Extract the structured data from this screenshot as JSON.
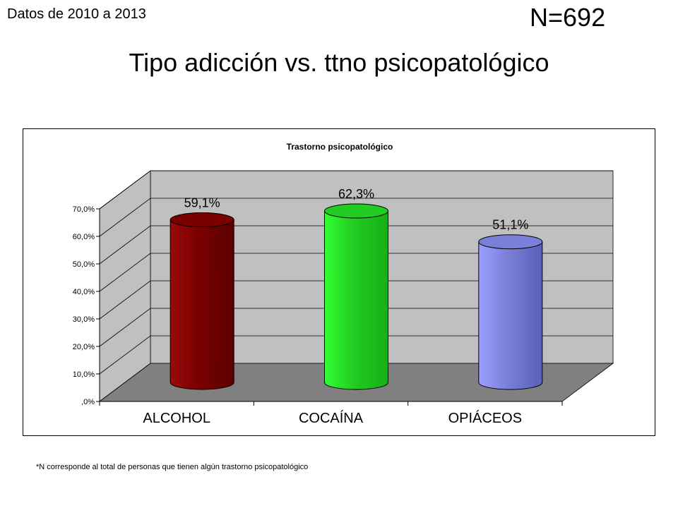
{
  "header": {
    "note": "Datos de 2010 a 2013",
    "n_label": "N=692",
    "title": "Tipo adicción vs. ttno psicopatológico"
  },
  "footnote": "*N corresponde al total de personas que tienen algún trastorno psicopatológico",
  "chart_data": {
    "type": "bar",
    "title": "Trastorno psicopatológico",
    "categories": [
      "ALCOHOL",
      "COCAÍNA",
      "OPIÁCEOS"
    ],
    "values": [
      59.1,
      62.3,
      51.1
    ],
    "data_labels": [
      "59,1%",
      "62,3%",
      "51,1%"
    ],
    "y_ticks": [
      ",0%",
      "10,0%",
      "20,0%",
      "30,0%",
      "40,0%",
      "50,0%",
      "60,0%",
      "70,0%"
    ],
    "ylim": [
      0,
      70
    ],
    "grid": true,
    "legend": "none",
    "colors": {
      "ALCOHOL": [
        "#5a0000",
        "#9a0a0a",
        "#7a0000"
      ],
      "COCAÍNA": [
        "#16b016",
        "#33ff33",
        "#22cc22"
      ],
      "OPIÁCEOS": [
        "#5a60b8",
        "#9aa0ff",
        "#7a80d8"
      ],
      "back_wall": "#c0c0c0",
      "side_wall": "#c0c0c0",
      "floor": "#808080"
    }
  }
}
